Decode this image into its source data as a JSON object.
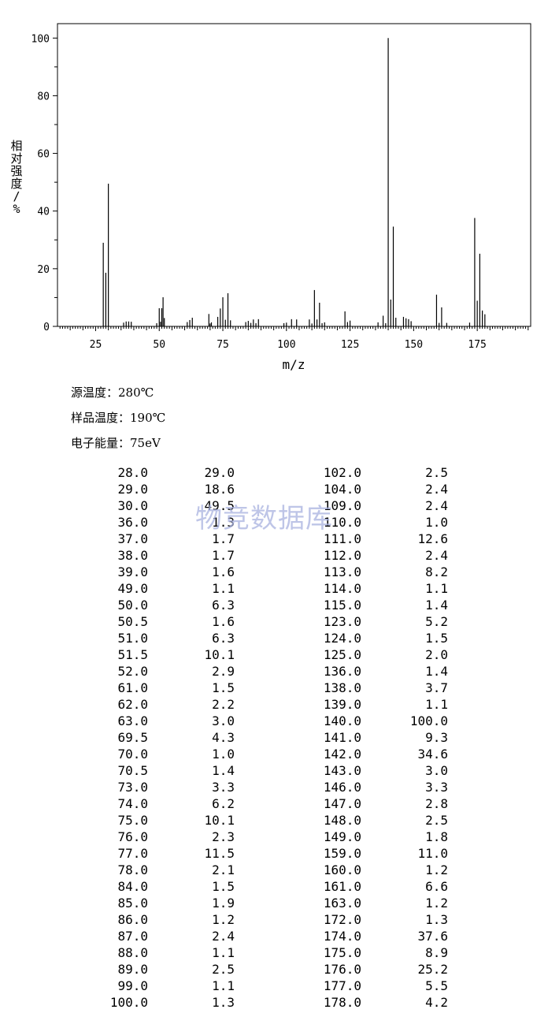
{
  "chart_data": {
    "type": "bar",
    "xlabel": "m/z",
    "ylabel": "相对强度/%",
    "xlim": [
      10,
      196
    ],
    "ylim": [
      0,
      105
    ],
    "x_ticks": [
      25,
      50,
      75,
      100,
      125,
      150,
      175
    ],
    "y_ticks": [
      0,
      20,
      40,
      60,
      80,
      100
    ],
    "grid": false,
    "peaks": [
      {
        "x": 28.0,
        "y": 29.0
      },
      {
        "x": 29.0,
        "y": 18.6
      },
      {
        "x": 30.0,
        "y": 49.5
      },
      {
        "x": 36.0,
        "y": 1.3
      },
      {
        "x": 37.0,
        "y": 1.7
      },
      {
        "x": 38.0,
        "y": 1.7
      },
      {
        "x": 39.0,
        "y": 1.6
      },
      {
        "x": 49.0,
        "y": 1.1
      },
      {
        "x": 50.0,
        "y": 6.3
      },
      {
        "x": 50.5,
        "y": 1.6
      },
      {
        "x": 51.0,
        "y": 6.3
      },
      {
        "x": 51.5,
        "y": 10.1
      },
      {
        "x": 52.0,
        "y": 2.9
      },
      {
        "x": 61.0,
        "y": 1.5
      },
      {
        "x": 62.0,
        "y": 2.2
      },
      {
        "x": 63.0,
        "y": 3.0
      },
      {
        "x": 69.5,
        "y": 4.3
      },
      {
        "x": 70.0,
        "y": 1.0
      },
      {
        "x": 70.5,
        "y": 1.4
      },
      {
        "x": 73.0,
        "y": 3.3
      },
      {
        "x": 74.0,
        "y": 6.2
      },
      {
        "x": 75.0,
        "y": 10.1
      },
      {
        "x": 76.0,
        "y": 2.3
      },
      {
        "x": 77.0,
        "y": 11.5
      },
      {
        "x": 78.0,
        "y": 2.1
      },
      {
        "x": 84.0,
        "y": 1.5
      },
      {
        "x": 85.0,
        "y": 1.9
      },
      {
        "x": 86.0,
        "y": 1.2
      },
      {
        "x": 87.0,
        "y": 2.4
      },
      {
        "x": 88.0,
        "y": 1.1
      },
      {
        "x": 89.0,
        "y": 2.5
      },
      {
        "x": 99.0,
        "y": 1.1
      },
      {
        "x": 100.0,
        "y": 1.3
      },
      {
        "x": 102.0,
        "y": 2.5
      },
      {
        "x": 104.0,
        "y": 2.4
      },
      {
        "x": 109.0,
        "y": 2.4
      },
      {
        "x": 110.0,
        "y": 1.0
      },
      {
        "x": 111.0,
        "y": 12.6
      },
      {
        "x": 112.0,
        "y": 2.4
      },
      {
        "x": 113.0,
        "y": 8.2
      },
      {
        "x": 114.0,
        "y": 1.1
      },
      {
        "x": 115.0,
        "y": 1.4
      },
      {
        "x": 123.0,
        "y": 5.2
      },
      {
        "x": 124.0,
        "y": 1.5
      },
      {
        "x": 125.0,
        "y": 2.0
      },
      {
        "x": 136.0,
        "y": 1.4
      },
      {
        "x": 138.0,
        "y": 3.7
      },
      {
        "x": 139.0,
        "y": 1.1
      },
      {
        "x": 140.0,
        "y": 100.0
      },
      {
        "x": 141.0,
        "y": 9.3
      },
      {
        "x": 142.0,
        "y": 34.6
      },
      {
        "x": 143.0,
        "y": 3.0
      },
      {
        "x": 146.0,
        "y": 3.3
      },
      {
        "x": 147.0,
        "y": 2.8
      },
      {
        "x": 148.0,
        "y": 2.5
      },
      {
        "x": 149.0,
        "y": 1.8
      },
      {
        "x": 159.0,
        "y": 11.0
      },
      {
        "x": 160.0,
        "y": 1.2
      },
      {
        "x": 161.0,
        "y": 6.6
      },
      {
        "x": 163.0,
        "y": 1.2
      },
      {
        "x": 172.0,
        "y": 1.3
      },
      {
        "x": 174.0,
        "y": 37.6
      },
      {
        "x": 175.0,
        "y": 8.9
      },
      {
        "x": 176.0,
        "y": 25.2
      },
      {
        "x": 177.0,
        "y": 5.5
      },
      {
        "x": 178.0,
        "y": 4.2
      }
    ]
  },
  "conditions": [
    "源温度：280℃",
    "样品温度：190℃",
    "电子能量：75eV"
  ],
  "table": {
    "left": [
      [
        "28.0",
        "29.0"
      ],
      [
        "29.0",
        "18.6"
      ],
      [
        "30.0",
        "49.5"
      ],
      [
        "36.0",
        "1.3"
      ],
      [
        "37.0",
        "1.7"
      ],
      [
        "38.0",
        "1.7"
      ],
      [
        "39.0",
        "1.6"
      ],
      [
        "49.0",
        "1.1"
      ],
      [
        "50.0",
        "6.3"
      ],
      [
        "50.5",
        "1.6"
      ],
      [
        "51.0",
        "6.3"
      ],
      [
        "51.5",
        "10.1"
      ],
      [
        "52.0",
        "2.9"
      ],
      [
        "61.0",
        "1.5"
      ],
      [
        "62.0",
        "2.2"
      ],
      [
        "63.0",
        "3.0"
      ],
      [
        "69.5",
        "4.3"
      ],
      [
        "70.0",
        "1.0"
      ],
      [
        "70.5",
        "1.4"
      ],
      [
        "73.0",
        "3.3"
      ],
      [
        "74.0",
        "6.2"
      ],
      [
        "75.0",
        "10.1"
      ],
      [
        "76.0",
        "2.3"
      ],
      [
        "77.0",
        "11.5"
      ],
      [
        "78.0",
        "2.1"
      ],
      [
        "84.0",
        "1.5"
      ],
      [
        "85.0",
        "1.9"
      ],
      [
        "86.0",
        "1.2"
      ],
      [
        "87.0",
        "2.4"
      ],
      [
        "88.0",
        "1.1"
      ],
      [
        "89.0",
        "2.5"
      ],
      [
        "99.0",
        "1.1"
      ],
      [
        "100.0",
        "1.3"
      ]
    ],
    "right": [
      [
        "102.0",
        "2.5"
      ],
      [
        "104.0",
        "2.4"
      ],
      [
        "109.0",
        "2.4"
      ],
      [
        "110.0",
        "1.0"
      ],
      [
        "111.0",
        "12.6"
      ],
      [
        "112.0",
        "2.4"
      ],
      [
        "113.0",
        "8.2"
      ],
      [
        "114.0",
        "1.1"
      ],
      [
        "115.0",
        "1.4"
      ],
      [
        "123.0",
        "5.2"
      ],
      [
        "124.0",
        "1.5"
      ],
      [
        "125.0",
        "2.0"
      ],
      [
        "136.0",
        "1.4"
      ],
      [
        "138.0",
        "3.7"
      ],
      [
        "139.0",
        "1.1"
      ],
      [
        "140.0",
        "100.0"
      ],
      [
        "141.0",
        "9.3"
      ],
      [
        "142.0",
        "34.6"
      ],
      [
        "143.0",
        "3.0"
      ],
      [
        "146.0",
        "3.3"
      ],
      [
        "147.0",
        "2.8"
      ],
      [
        "148.0",
        "2.5"
      ],
      [
        "149.0",
        "1.8"
      ],
      [
        "159.0",
        "11.0"
      ],
      [
        "160.0",
        "1.2"
      ],
      [
        "161.0",
        "6.6"
      ],
      [
        "163.0",
        "1.2"
      ],
      [
        "172.0",
        "1.3"
      ],
      [
        "174.0",
        "37.6"
      ],
      [
        "175.0",
        "8.9"
      ],
      [
        "176.0",
        "25.2"
      ],
      [
        "177.0",
        "5.5"
      ],
      [
        "178.0",
        "4.2"
      ]
    ]
  },
  "watermark": "物竞数据库"
}
